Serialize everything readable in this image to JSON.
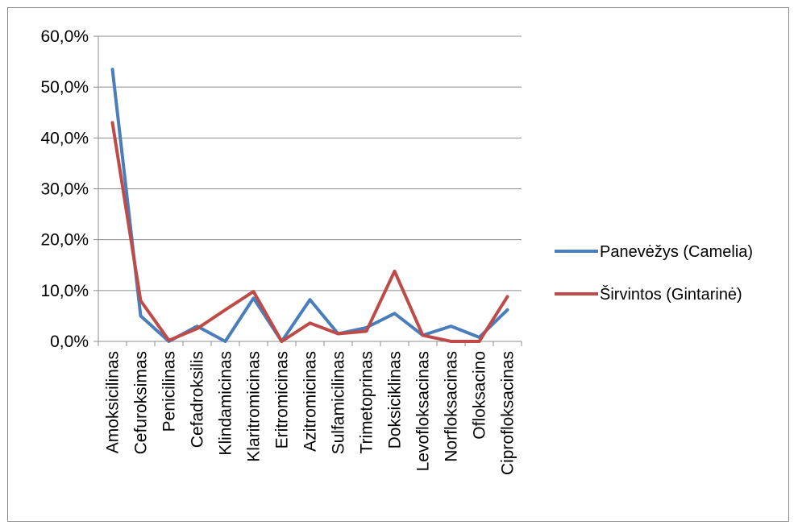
{
  "chart_data": {
    "type": "line",
    "title": "",
    "xlabel": "",
    "ylabel": "",
    "categories": [
      "Amoksicilinas",
      "Cefuroksimas",
      "Penicilinas",
      "Cefadroksilis",
      "Klindamicinas",
      "Klaritromicinas",
      "Eritromicinas",
      "Azitromicinas",
      "Sulfamicilinas",
      "Trimetoprinas",
      "Doksiciklinas",
      "Levofloksacinas",
      "Norfloksacinas",
      "Ofloksacino",
      "Ciprofloksacinas"
    ],
    "y_ticks": [
      "0,0%",
      "10,0%",
      "20,0%",
      "30,0%",
      "40,0%",
      "50,0%",
      "60,0%"
    ],
    "ylim": [
      0,
      60
    ],
    "grid": true,
    "legend_position": "right",
    "series": [
      {
        "name": "Panevėžys (Camelia)",
        "color": "#4a7ebb",
        "values": [
          53.5,
          5.0,
          0.0,
          3.0,
          0.0,
          8.5,
          0.0,
          8.2,
          1.5,
          2.7,
          5.5,
          1.2,
          3.0,
          0.8,
          6.2
        ]
      },
      {
        "name": "Širvintos (Gintarinė)",
        "color": "#be4b48",
        "values": [
          43.0,
          8.0,
          0.2,
          2.5,
          6.2,
          9.8,
          0.0,
          3.6,
          1.5,
          2.0,
          13.8,
          1.2,
          0.0,
          0.0,
          8.8
        ]
      }
    ]
  }
}
